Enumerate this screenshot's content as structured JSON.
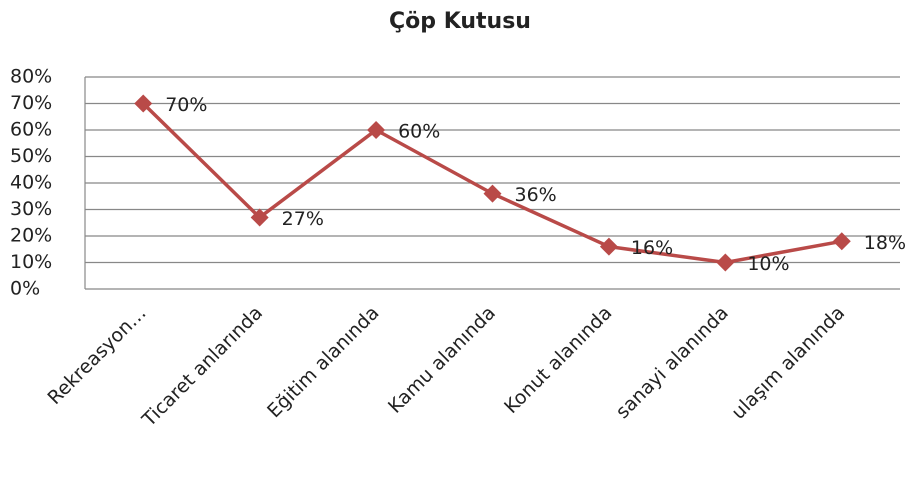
{
  "chart_data": {
    "type": "line",
    "title": "Çöp Kutusu",
    "categories": [
      "Rekreasyon…",
      "Ticaret anlarında",
      "Eğitim alanında",
      "Kamu alanında",
      "Konut alanında",
      "sanayi alanında",
      "ulaşım alanında"
    ],
    "series": [
      {
        "name": "Çöp Kutusu",
        "color": "#b94a48",
        "values": [
          70,
          27,
          60,
          36,
          16,
          10,
          18
        ],
        "value_labels": [
          "70%",
          "27%",
          "60%",
          "36%",
          "16%",
          "10%",
          "18%"
        ]
      }
    ],
    "ylim": [
      0,
      80
    ],
    "yticks": [
      {
        "value": 0,
        "label": "0%"
      },
      {
        "value": 10,
        "label": "10%"
      },
      {
        "value": 20,
        "label": "20%"
      },
      {
        "value": 30,
        "label": "30%"
      },
      {
        "value": 40,
        "label": "40%"
      },
      {
        "value": 50,
        "label": "50%"
      },
      {
        "value": 60,
        "label": "60%"
      },
      {
        "value": 70,
        "label": "70%"
      },
      {
        "value": 80,
        "label": "80%"
      }
    ],
    "grid": true
  }
}
